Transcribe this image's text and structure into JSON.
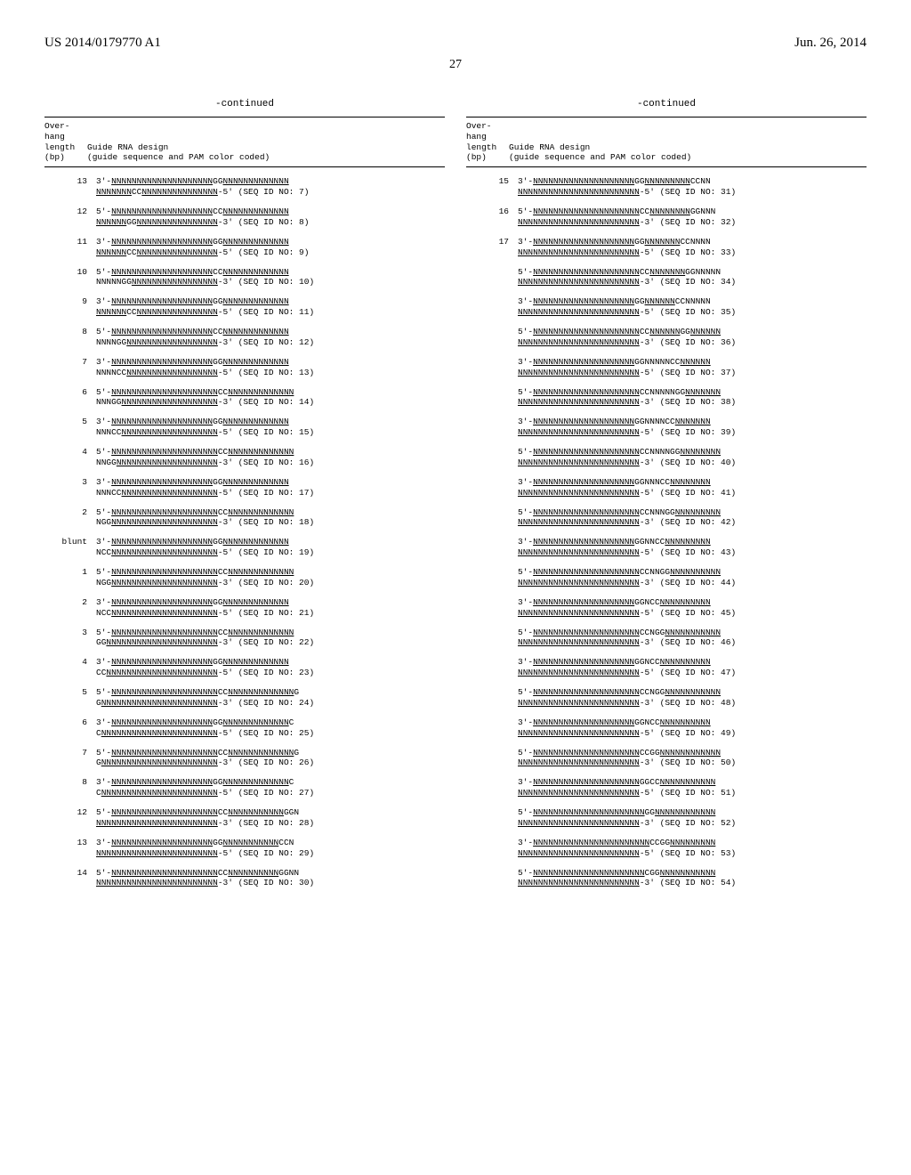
{
  "header": {
    "left": "US 2014/0179770 A1",
    "right": "Jun. 26, 2014",
    "page": "27"
  },
  "continued_label": "-continued",
  "table_header": {
    "col1_line1": "Over-",
    "col1_line2": "hang",
    "col1_line3": "length",
    "col1_line4": "(bp)",
    "col2_line1": "Guide RNA design",
    "col2_line2": "(guide sequence and PAM color coded)"
  },
  "left_entries": [
    {
      "bp": "13",
      "l1": "3'-NNNNNNNNNNNNNNNNNNNNGGNNNNNNNNNNNNN",
      "l2": "NNNNNNNCCNNNNNNNNNNNNNNN-5'  (SEQ ID NO: 7)"
    },
    {
      "bp": "12",
      "l1": "5'-NNNNNNNNNNNNNNNNNNNNCCNNNNNNNNNNNNN",
      "l2": "NNNNNNGGNNNNNNNNNNNNNNNN-3'  (SEQ ID NO: 8)"
    },
    {
      "bp": "11",
      "l1": "3'-NNNNNNNNNNNNNNNNNNNNGGNNNNNNNNNNNNN",
      "l2": "NNNNNNCCNNNNNNNNNNNNNNNN-5'  (SEQ ID NO: 9)"
    },
    {
      "bp": "10",
      "l1": "5'-NNNNNNNNNNNNNNNNNNNNCCNNNNNNNNNNNNN",
      "l2": "NNNNNGGNNNNNNNNNNNNNNNNN-3'  (SEQ ID NO: 10)"
    },
    {
      "bp": "9",
      "l1": "3'-NNNNNNNNNNNNNNNNNNNNGGNNNNNNNNNNNNN",
      "l2": "NNNNNNCCNNNNNNNNNNNNNNNN-5'  (SEQ ID NO: 11)"
    },
    {
      "bp": "8",
      "l1": "5'-NNNNNNNNNNNNNNNNNNNNCCNNNNNNNNNNNNN",
      "l2": "NNNNGGNNNNNNNNNNNNNNNNNN-3'  (SEQ ID NO: 12)"
    },
    {
      "bp": "7",
      "l1": "3'-NNNNNNNNNNNNNNNNNNNNGGNNNNNNNNNNNNN",
      "l2": "NNNNCCNNNNNNNNNNNNNNNNNN-5'  (SEQ ID NO: 13)"
    },
    {
      "bp": "6",
      "l1": "5'-NNNNNNNNNNNNNNNNNNNNNCCNNNNNNNNNNNNN",
      "l2": "NNNGGNNNNNNNNNNNNNNNNNNN-3'  (SEQ ID NO: 14)"
    },
    {
      "bp": "5",
      "l1": "3'-NNNNNNNNNNNNNNNNNNNNGGNNNNNNNNNNNNN",
      "l2": "NNNCCNNNNNNNNNNNNNNNNNNN-5'  (SEQ ID NO: 15)"
    },
    {
      "bp": "4",
      "l1": "5'-NNNNNNNNNNNNNNNNNNNNNCCNNNNNNNNNNNNN",
      "l2": "NNGGNNNNNNNNNNNNNNNNNNNN-3'  (SEQ ID NO: 16)"
    },
    {
      "bp": "3",
      "l1": "3'-NNNNNNNNNNNNNNNNNNNNGGNNNNNNNNNNNNN",
      "l2": "NNNCCNNNNNNNNNNNNNNNNNNN-5'  (SEQ ID NO: 17)"
    },
    {
      "bp": "2",
      "l1": "5'-NNNNNNNNNNNNNNNNNNNNNCCNNNNNNNNNNNNN",
      "l2": "NGGNNNNNNNNNNNNNNNNNNNNN-3'  (SEQ ID NO: 18)"
    },
    {
      "bp": "blunt",
      "l1": "3'-NNNNNNNNNNNNNNNNNNNNGGNNNNNNNNNNNNN",
      "l2": "NCCNNNNNNNNNNNNNNNNNNNNN-5'  (SEQ ID NO: 19)"
    },
    {
      "bp": "1",
      "l1": "5'-NNNNNNNNNNNNNNNNNNNNNCCNNNNNNNNNNNNN",
      "l2": "NGGNNNNNNNNNNNNNNNNNNNNN-3'  (SEQ ID NO: 20)"
    },
    {
      "bp": "2",
      "l1": "3'-NNNNNNNNNNNNNNNNNNNNGGNNNNNNNNNNNNN",
      "l2": "NCCNNNNNNNNNNNNNNNNNNNNN-5'  (SEQ ID NO: 21)"
    },
    {
      "bp": "3",
      "l1": "5'-NNNNNNNNNNNNNNNNNNNNNCCNNNNNNNNNNNNN",
      "l2": "GGNNNNNNNNNNNNNNNNNNNNNN-3'  (SEQ ID NO: 22)"
    },
    {
      "bp": "4",
      "l1": "3'-NNNNNNNNNNNNNNNNNNNNGGNNNNNNNNNNNNN",
      "l2": "CCNNNNNNNNNNNNNNNNNNNNNN-5'  (SEQ ID NO: 23)"
    },
    {
      "bp": "5",
      "l1": "5'-NNNNNNNNNNNNNNNNNNNNNCCNNNNNNNNNNNNNG",
      "l2": "GNNNNNNNNNNNNNNNNNNNNNNN-3'  (SEQ ID NO: 24)"
    },
    {
      "bp": "6",
      "l1": "3'-NNNNNNNNNNNNNNNNNNNNGGNNNNNNNNNNNNNC",
      "l2": "CNNNNNNNNNNNNNNNNNNNNNNN-5'  (SEQ ID NO: 25)"
    },
    {
      "bp": "7",
      "l1": "5'-NNNNNNNNNNNNNNNNNNNNNCCNNNNNNNNNNNNNG",
      "l2": "GNNNNNNNNNNNNNNNNNNNNNNN-3'  (SEQ ID NO: 26)"
    },
    {
      "bp": "8",
      "l1": "3'-NNNNNNNNNNNNNNNNNNNNGGNNNNNNNNNNNNNC",
      "l2": "CNNNNNNNNNNNNNNNNNNNNNNN-5'  (SEQ ID NO: 27)"
    },
    {
      "bp": "12",
      "l1": "5'-NNNNNNNNNNNNNNNNNNNNNCCNNNNNNNNNNNGGN",
      "l2": "NNNNNNNNNNNNNNNNNNNNNNNN-3'  (SEQ ID NO: 28)"
    },
    {
      "bp": "13",
      "l1": "3'-NNNNNNNNNNNNNNNNNNNNGGNNNNNNNNNNNCCN",
      "l2": "NNNNNNNNNNNNNNNNNNNNNNNN-5'  (SEQ ID NO: 29)"
    },
    {
      "bp": "14",
      "l1": "5'-NNNNNNNNNNNNNNNNNNNNNCCNNNNNNNNNNGGNN",
      "l2": "NNNNNNNNNNNNNNNNNNNNNNNN-3'  (SEQ ID NO: 30)"
    }
  ],
  "right_entries": [
    {
      "bp": "15",
      "l1": "3'-NNNNNNNNNNNNNNNNNNNNGGNNNNNNNNNCCNN",
      "l2": "NNNNNNNNNNNNNNNNNNNNNNNN-5'  (SEQ ID NO: 31)"
    },
    {
      "bp": "16",
      "l1": "5'-NNNNNNNNNNNNNNNNNNNNNCCNNNNNNNNGGNNN",
      "l2": "NNNNNNNNNNNNNNNNNNNNNNNN-3'  (SEQ ID NO: 32)"
    },
    {
      "bp": "17",
      "l1": "3'-NNNNNNNNNNNNNNNNNNNNGGNNNNNNNCCNNNN",
      "l2": "NNNNNNNNNNNNNNNNNNNNNNNN-5'  (SEQ ID NO: 33)"
    },
    {
      "bp": "",
      "l1": "5'-NNNNNNNNNNNNNNNNNNNNNCCNNNNNNNGGNNNNN",
      "l2": "NNNNNNNNNNNNNNNNNNNNNNNN-3'  (SEQ ID NO: 34)"
    },
    {
      "bp": "",
      "l1": "3'-NNNNNNNNNNNNNNNNNNNNGGNNNNNNCCNNNNN",
      "l2": "NNNNNNNNNNNNNNNNNNNNNNNN-5'  (SEQ ID NO: 35)"
    },
    {
      "bp": "",
      "l1": "5'-NNNNNNNNNNNNNNNNNNNNNCCNNNNNNGGNNNNNN",
      "l2": "NNNNNNNNNNNNNNNNNNNNNNNN-3'  (SEQ ID NO: 36)"
    },
    {
      "bp": "",
      "l1": "3'-NNNNNNNNNNNNNNNNNNNNGGNNNNNCCNNNNNN",
      "l2": "NNNNNNNNNNNNNNNNNNNNNNNN-5'  (SEQ ID NO: 37)"
    },
    {
      "bp": "",
      "l1": "5'-NNNNNNNNNNNNNNNNNNNNNCCNNNNNGGNNNNNNN",
      "l2": "NNNNNNNNNNNNNNNNNNNNNNNN-3'  (SEQ ID NO: 38)"
    },
    {
      "bp": "",
      "l1": "3'-NNNNNNNNNNNNNNNNNNNNGGNNNNCCNNNNNNN",
      "l2": "NNNNNNNNNNNNNNNNNNNNNNNN-5'  (SEQ ID NO: 39)"
    },
    {
      "bp": "",
      "l1": "5'-NNNNNNNNNNNNNNNNNNNNNCCNNNNGGNNNNNNNN",
      "l2": "NNNNNNNNNNNNNNNNNNNNNNNN-3'  (SEQ ID NO: 40)"
    },
    {
      "bp": "",
      "l1": "3'-NNNNNNNNNNNNNNNNNNNNGGNNNCCNNNNNNNN",
      "l2": "NNNNNNNNNNNNNNNNNNNNNNNN-5'  (SEQ ID NO: 41)"
    },
    {
      "bp": "",
      "l1": "5'-NNNNNNNNNNNNNNNNNNNNNCCNNNGGNNNNNNNNN",
      "l2": "NNNNNNNNNNNNNNNNNNNNNNNN-3'  (SEQ ID NO: 42)"
    },
    {
      "bp": "",
      "l1": "3'-NNNNNNNNNNNNNNNNNNNNGGNNCCNNNNNNNNN",
      "l2": "NNNNNNNNNNNNNNNNNNNNNNNN-5'  (SEQ ID NO: 43)"
    },
    {
      "bp": "",
      "l1": "5'-NNNNNNNNNNNNNNNNNNNNNCCNNGGNNNNNNNNNN",
      "l2": "NNNNNNNNNNNNNNNNNNNNNNNN-3'  (SEQ ID NO: 44)"
    },
    {
      "bp": "",
      "l1": "3'-NNNNNNNNNNNNNNNNNNNNGGNCCNNNNNNNNNN",
      "l2": "NNNNNNNNNNNNNNNNNNNNNNNN-5'  (SEQ ID NO: 45)"
    },
    {
      "bp": "",
      "l1": "5'-NNNNNNNNNNNNNNNNNNNNNCCNGGNNNNNNNNNNN",
      "l2": "NNNNNNNNNNNNNNNNNNNNNNNN-3'  (SEQ ID NO: 46)"
    },
    {
      "bp": "",
      "l1": "3'-NNNNNNNNNNNNNNNNNNNNGGNCCNNNNNNNNNN",
      "l2": "NNNNNNNNNNNNNNNNNNNNNNNN-5'  (SEQ ID NO: 47)"
    },
    {
      "bp": "",
      "l1": "5'-NNNNNNNNNNNNNNNNNNNNNCCNGGNNNNNNNNNNN",
      "l2": "NNNNNNNNNNNNNNNNNNNNNNNN-3'  (SEQ ID NO: 48)"
    },
    {
      "bp": "",
      "l1": "3'-NNNNNNNNNNNNNNNNNNNNGGNCCNNNNNNNNNN",
      "l2": "NNNNNNNNNNNNNNNNNNNNNNNN-5'  (SEQ ID NO: 49)"
    },
    {
      "bp": "",
      "l1": "5'-NNNNNNNNNNNNNNNNNNNNNCCGGNNNNNNNNNNNN",
      "l2": "NNNNNNNNNNNNNNNNNNNNNNNN-3'  (SEQ ID NO: 50)"
    },
    {
      "bp": "",
      "l1": "3'-NNNNNNNNNNNNNNNNNNNNNGGCCNNNNNNNNNNN",
      "l2": "NNNNNNNNNNNNNNNNNNNNNNNN-5'  (SEQ ID NO: 51)"
    },
    {
      "bp": "",
      "l1": "5'-NNNNNNNNNNNNNNNNNNNNNNGGNNNNNNNNNNNN",
      "l2": "NNNNNNNNNNNNNNNNNNNNNNNN-3'  (SEQ ID NO: 52)"
    },
    {
      "bp": "",
      "l1": "3'-NNNNNNNNNNNNNNNNNNNNNNNCCGGNNNNNNNNN",
      "l2": "NNNNNNNNNNNNNNNNNNNNNNNN-5'  (SEQ ID NO: 53)"
    },
    {
      "bp": "",
      "l1": "5'-NNNNNNNNNNNNNNNNNNNNNNCGGNNNNNNNNNNN",
      "l2": "NNNNNNNNNNNNNNNNNNNNNNNN-3'  (SEQ ID NO: 54)"
    }
  ]
}
